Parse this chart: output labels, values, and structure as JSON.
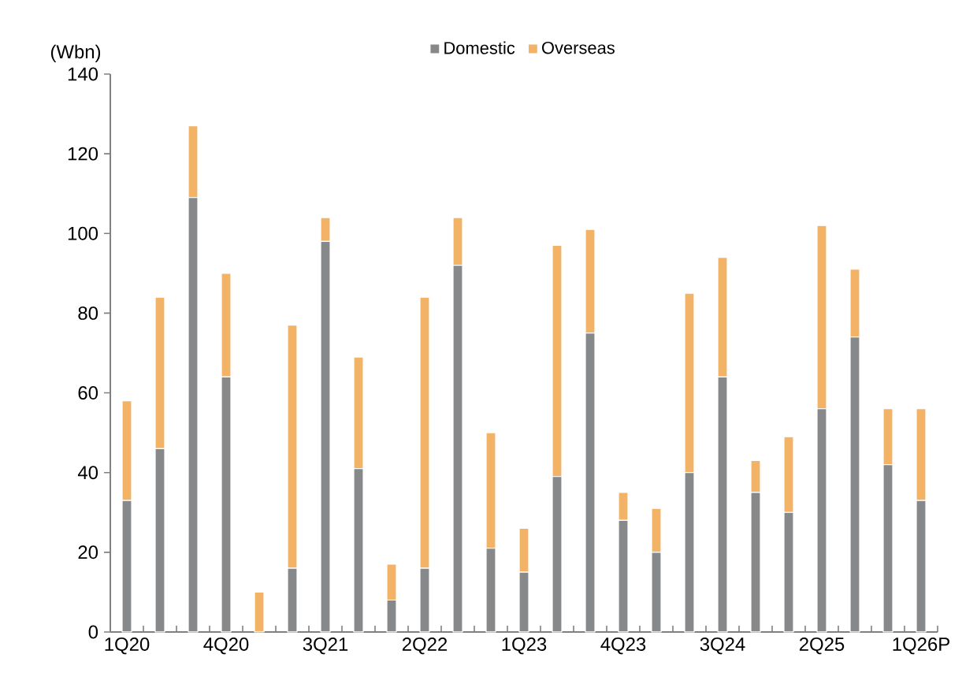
{
  "chart_data": {
    "type": "bar",
    "stacked": true,
    "ylabel": "(Wbn)",
    "categories": [
      "1Q20",
      null,
      null,
      "4Q20",
      null,
      null,
      "3Q21",
      null,
      null,
      "2Q22",
      null,
      null,
      "1Q23",
      null,
      null,
      "4Q23",
      null,
      null,
      "3Q24",
      null,
      null,
      "2Q25",
      null,
      null,
      "1Q26P"
    ],
    "series": [
      {
        "name": "Domestic",
        "color": "#86888a",
        "values": [
          33,
          46,
          109,
          64,
          0,
          16,
          98,
          41,
          8,
          16,
          92,
          21,
          15,
          39,
          75,
          28,
          20,
          40,
          64,
          35,
          30,
          56,
          74,
          42,
          33
        ]
      },
      {
        "name": "Overseas",
        "color": "#f2b366",
        "values": [
          25,
          38,
          18,
          26,
          10,
          61,
          6,
          28,
          9,
          68,
          12,
          29,
          11,
          58,
          26,
          7,
          11,
          45,
          30,
          8,
          19,
          46,
          17,
          14,
          23
        ]
      }
    ],
    "ylim": [
      0,
      140
    ],
    "yticks": [
      0,
      20,
      40,
      60,
      80,
      100,
      120,
      140
    ],
    "grid": false,
    "legend": "top"
  }
}
